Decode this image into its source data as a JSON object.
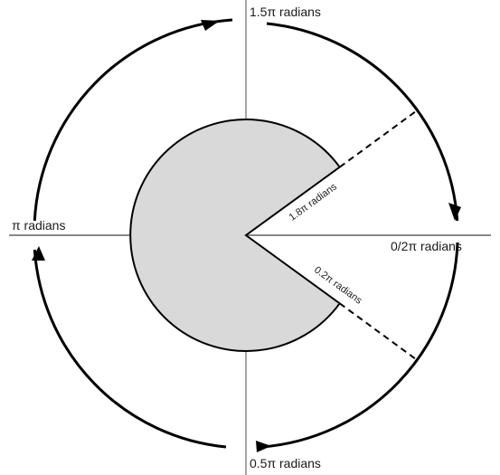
{
  "labels": {
    "top": "1.5π radians",
    "left": "π radians",
    "right": "0/2π radians",
    "bottom": "0.5π radians",
    "upper_wedge": "1.8π radians",
    "lower_wedge": "0.2π radians"
  },
  "colors": {
    "sector_fill": "#d9d9d9",
    "line": "#000000",
    "axis": "#888888"
  }
}
